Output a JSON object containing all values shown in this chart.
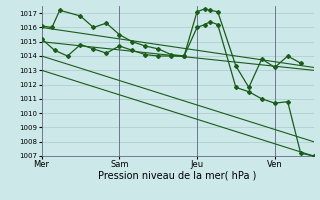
{
  "background_color": "#cce8e8",
  "grid_color": "#aacccc",
  "line_color": "#1a5c1a",
  "ylim": [
    1007,
    1017.5
  ],
  "yticks": [
    1007,
    1008,
    1009,
    1010,
    1011,
    1012,
    1013,
    1014,
    1015,
    1016,
    1017
  ],
  "ytick_fontsize": 5,
  "xlabel": "Pression niveau de la mer( hPa )",
  "xlabel_fontsize": 7,
  "xtick_labels": [
    "Mer",
    "Sam",
    "Jeu",
    "Ven"
  ],
  "xtick_positions": [
    0,
    3,
    6,
    9
  ],
  "xtick_fontsize": 6,
  "vline_positions": [
    0,
    3,
    6,
    9
  ],
  "xlim": [
    0,
    10.5
  ],
  "series": [
    {
      "x": [
        0,
        0.4,
        0.7,
        1.5,
        2.0,
        2.5,
        3.0,
        3.5,
        4.0,
        4.5,
        5.0,
        5.5,
        6.0,
        6.3,
        6.5,
        6.8,
        7.5,
        8.0,
        8.5,
        9.0,
        9.5,
        10.0
      ],
      "y": [
        1016.1,
        1016.0,
        1017.2,
        1016.8,
        1016.0,
        1016.3,
        1015.5,
        1015.0,
        1014.7,
        1014.5,
        1014.1,
        1014.0,
        1017.1,
        1017.3,
        1017.2,
        1017.1,
        1013.3,
        1011.8,
        1013.8,
        1013.2,
        1014.0,
        1013.5
      ],
      "marker": "D",
      "markersize": 2.0,
      "linewidth": 0.9
    },
    {
      "x": [
        0,
        0.5,
        1.0,
        1.5,
        2.0,
        2.5,
        3.0,
        3.5,
        4.0,
        4.5,
        5.0,
        5.5,
        6.0,
        6.3,
        6.5,
        6.8,
        7.5,
        8.0,
        8.5,
        9.0,
        9.5,
        10.0,
        10.5
      ],
      "y": [
        1015.2,
        1014.4,
        1014.0,
        1014.8,
        1014.5,
        1014.2,
        1014.7,
        1014.4,
        1014.1,
        1014.0,
        1014.0,
        1014.0,
        1016.0,
        1016.2,
        1016.4,
        1016.2,
        1011.8,
        1011.5,
        1011.0,
        1010.7,
        1010.8,
        1007.2,
        1007.0
      ],
      "marker": "D",
      "markersize": 2.0,
      "linewidth": 0.9
    },
    {
      "x": [
        0,
        10.5
      ],
      "y": [
        1016.0,
        1013.2
      ],
      "marker": null,
      "markersize": 0,
      "linewidth": 0.8
    },
    {
      "x": [
        0,
        10.5
      ],
      "y": [
        1015.0,
        1013.0
      ],
      "marker": null,
      "markersize": 0,
      "linewidth": 0.8
    },
    {
      "x": [
        0,
        10.5
      ],
      "y": [
        1014.0,
        1008.0
      ],
      "marker": null,
      "markersize": 0,
      "linewidth": 0.8
    },
    {
      "x": [
        0,
        10.5
      ],
      "y": [
        1013.0,
        1007.0
      ],
      "marker": null,
      "markersize": 0,
      "linewidth": 0.8
    }
  ]
}
